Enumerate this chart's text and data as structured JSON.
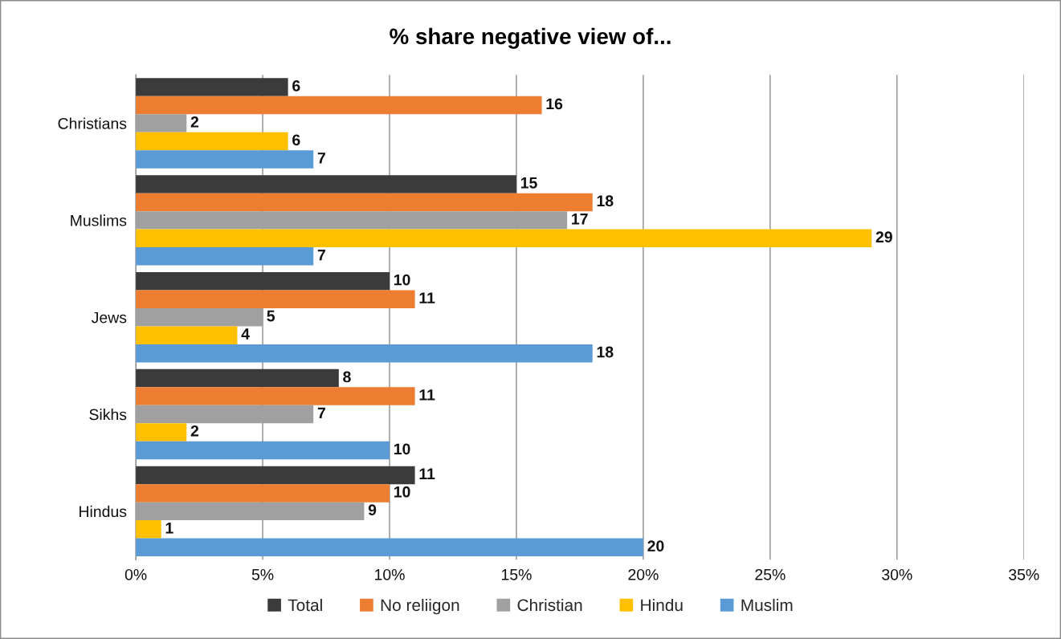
{
  "chart_data": {
    "type": "bar",
    "orientation": "horizontal",
    "title": "% share negative view of...",
    "categories": [
      "Christians",
      "Muslims",
      "Jews",
      "Sikhs",
      "Hindus"
    ],
    "series": [
      {
        "name": "Total",
        "color": "#3b3b3b",
        "values": [
          6,
          15,
          10,
          8,
          11
        ]
      },
      {
        "name": "No reliigon",
        "color": "#ed7d31",
        "values": [
          16,
          18,
          11,
          11,
          10
        ]
      },
      {
        "name": "Christian",
        "color": "#a0a0a0",
        "values": [
          2,
          17,
          5,
          7,
          9
        ]
      },
      {
        "name": "Hindu",
        "color": "#ffc000",
        "values": [
          6,
          29,
          4,
          2,
          1
        ]
      },
      {
        "name": "Muslim",
        "color": "#5b9bd5",
        "values": [
          7,
          7,
          18,
          10,
          20
        ]
      }
    ],
    "xlim": [
      0,
      35
    ],
    "xticks": [
      {
        "value": 0,
        "label": "0%"
      },
      {
        "value": 5,
        "label": "5%"
      },
      {
        "value": 10,
        "label": "10%"
      },
      {
        "value": 15,
        "label": "15%"
      },
      {
        "value": 20,
        "label": "20%"
      },
      {
        "value": 25,
        "label": "25%"
      },
      {
        "value": 30,
        "label": "30%"
      },
      {
        "value": 35,
        "label": "35%"
      }
    ],
    "grid": "x",
    "legend": "bottom",
    "data_labels": true
  }
}
